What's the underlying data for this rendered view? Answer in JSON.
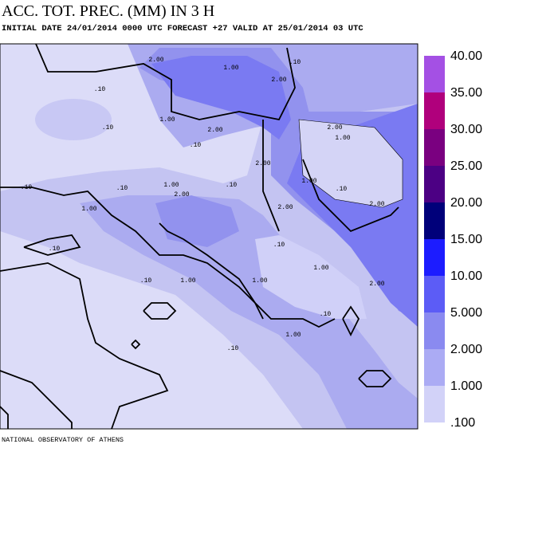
{
  "header": {
    "title": "ACC. TOT. PREC. (MM) IN 3 H",
    "subtitle": "INITIAL DATE 24/01/2014   0000 UTC  FORECAST +27 VALID AT  25/01/2014  03 UTC"
  },
  "footer": "NATIONAL OBSERVATORY OF ATHENS",
  "colorbar": {
    "labels": [
      "40.00",
      "35.00",
      "30.00",
      "25.00",
      "20.00",
      "15.00",
      "10.00",
      "5.000",
      "2.000",
      "1.000",
      ".100"
    ],
    "colors": [
      "#a450e4",
      "#b0007c",
      "#7a0080",
      "#4c0084",
      "#00007a",
      "#1c1cff",
      "#5c5cf6",
      "#8a8af0",
      "#ababf4",
      "#d2d2f8"
    ]
  },
  "contour_labels": [
    "2.00",
    "1.00",
    ".10",
    "2.00",
    ".10",
    ".10",
    "1.00",
    "2.00",
    ".10",
    "2.00",
    "1.00",
    "2.00",
    "1.00",
    ".10",
    "2.00",
    ".10",
    ".10",
    "1.00",
    "2.00",
    ".10",
    "2.00",
    "1.00",
    ".10",
    ".10",
    "1.00",
    "1.00",
    ".10",
    "1.00",
    "2.00",
    ".10",
    "1.00",
    ".10"
  ]
}
